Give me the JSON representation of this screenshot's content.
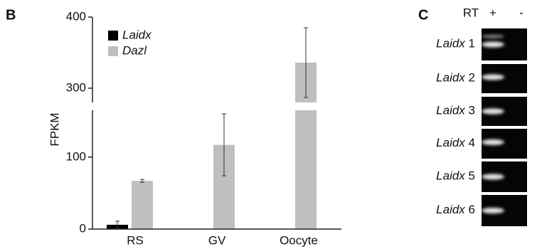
{
  "chart_data": {
    "type": "bar",
    "panel_label": "B",
    "ylabel": "FPKM",
    "categories": [
      "RS",
      "GV",
      "Oocyte"
    ],
    "series": [
      {
        "name": "Laidx",
        "color": "#000000",
        "values": [
          6,
          0,
          0
        ],
        "errors": [
          5,
          0,
          0
        ]
      },
      {
        "name": "Dazl",
        "color": "#bfbfbf",
        "values": [
          67,
          117,
          336
        ],
        "errors": [
          2,
          43,
          49
        ]
      }
    ],
    "ylim": [
      0,
      400
    ],
    "y_break": [
      165,
      280
    ],
    "yticks": [
      0,
      100,
      300,
      400
    ],
    "legend": "upper left"
  },
  "gel": {
    "panel_label": "C",
    "header": "RT",
    "columns": [
      "+",
      "-"
    ],
    "lanes": [
      {
        "gene": "Laidx",
        "number": "1"
      },
      {
        "gene": "Laidx",
        "number": "2"
      },
      {
        "gene": "Laidx",
        "number": "3"
      },
      {
        "gene": "Laidx",
        "number": "4"
      },
      {
        "gene": "Laidx",
        "number": "5"
      },
      {
        "gene": "Laidx",
        "number": "6"
      }
    ]
  }
}
